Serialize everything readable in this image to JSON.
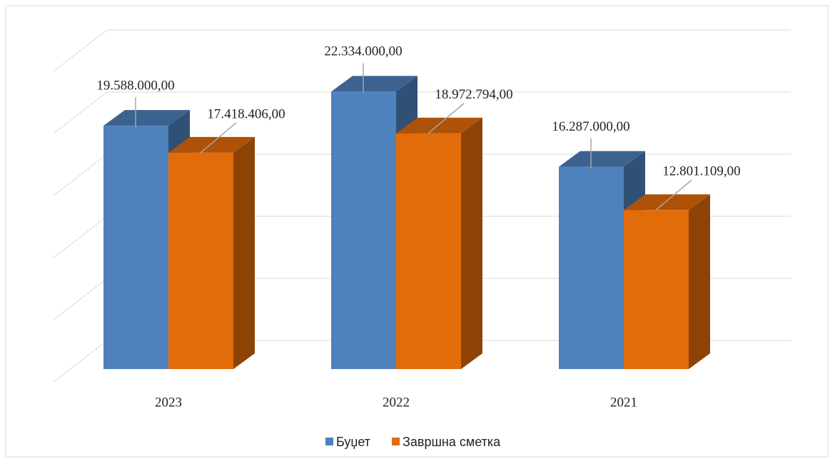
{
  "chart_data": {
    "type": "bar3d",
    "categories": [
      "2023",
      "2022",
      "2021"
    ],
    "series": [
      {
        "name": "Буџет",
        "color": "#4f81bd",
        "values": [
          19588000,
          22334000,
          16287000
        ],
        "value_labels": [
          "19.588.000,00",
          "22.334.000,00",
          "16.287.000,00"
        ]
      },
      {
        "name": "Завршна сметка",
        "color": "#e36c0a",
        "values": [
          17418406,
          18972794,
          12801109
        ],
        "value_labels": [
          "17.418.406,00",
          "18.972.794,00",
          "12.801.109,00"
        ]
      }
    ],
    "ylim": [
      0,
      25000000
    ],
    "yticks": [
      0,
      5000000,
      10000000,
      15000000,
      20000000,
      25000000
    ],
    "grid": true,
    "legend": "bottom"
  }
}
